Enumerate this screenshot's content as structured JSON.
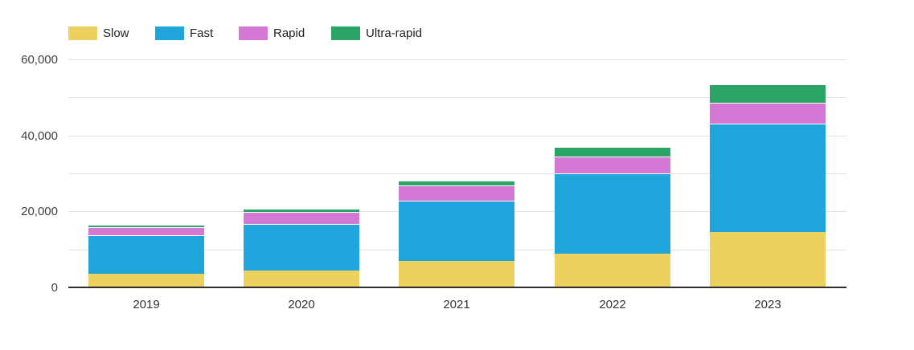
{
  "chart_data": {
    "type": "bar",
    "stacked": true,
    "title": "",
    "categories": [
      "2019",
      "2020",
      "2021",
      "2022",
      "2023"
    ],
    "series": [
      {
        "name": "Slow",
        "color": "#ecd15f",
        "values": [
          3600,
          4400,
          7000,
          8900,
          14500
        ]
      },
      {
        "name": "Fast",
        "color": "#1ea5db",
        "values": [
          10100,
          12200,
          15900,
          21100,
          28600
        ]
      },
      {
        "name": "Rapid",
        "color": "#d577d5",
        "values": [
          2100,
          3200,
          4000,
          4400,
          5400
        ]
      },
      {
        "name": "Ultra-rapid",
        "color": "#2aa565",
        "values": [
          700,
          1000,
          1300,
          2500,
          5000
        ]
      }
    ],
    "xlabel": "",
    "ylabel": "",
    "ylim": [
      0,
      60000
    ],
    "yticks": [
      0,
      20000,
      40000,
      60000
    ],
    "ytick_labels": [
      "0",
      "20,000",
      "40,000",
      "60,000"
    ],
    "gridline_step": 10000,
    "grid": true,
    "legend_position": "top-left",
    "colors": {
      "gridline": "#e2e2e2",
      "axis_line": "#2f2f2f",
      "tick_text": "#404040",
      "legend_text": "#1f1f1f",
      "background": "#ffffff"
    }
  }
}
